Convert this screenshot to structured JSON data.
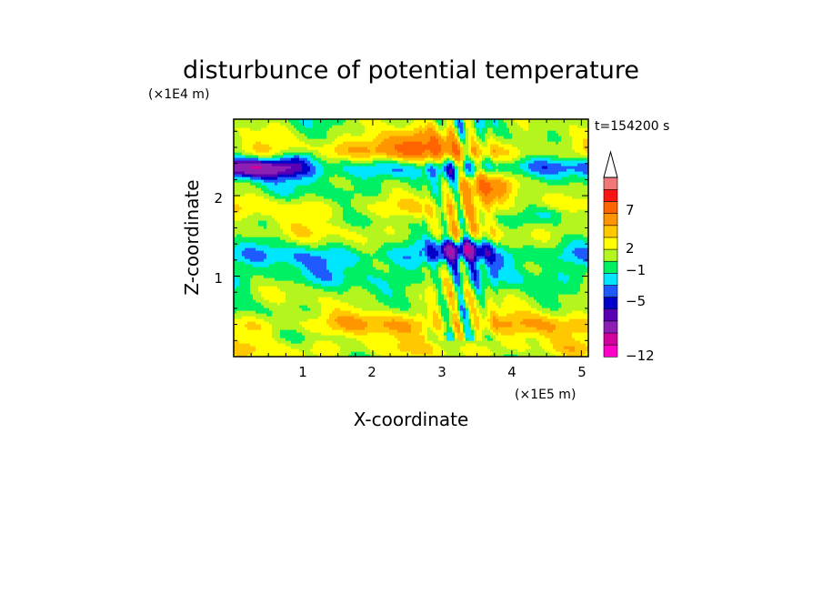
{
  "chart_data": {
    "type": "heatmap",
    "title": "disturbunce of potential temperature",
    "time_label": "t=154200 s",
    "xlabel": "X-coordinate",
    "ylabel": "Z-coordinate",
    "x_unit": "(×1E5 m)",
    "y_unit": "(×1E4 m)",
    "xlim": [
      0,
      5.1
    ],
    "ylim": [
      0,
      2.95
    ],
    "x_ticks": [
      "1",
      "2",
      "3",
      "4",
      "5"
    ],
    "y_ticks": [
      "1",
      "2"
    ],
    "colorbar": {
      "colors": [
        "#ff00c8",
        "#d4009e",
        "#8c1fb4",
        "#5a00b4",
        "#0000c8",
        "#1e5aff",
        "#00e6ff",
        "#00f064",
        "#b4f51e",
        "#ffff00",
        "#ffc800",
        "#ff9600",
        "#ff6400",
        "#ff1414",
        "#f07878",
        "#ffb4b4"
      ],
      "tick_labels": [
        "7",
        "2",
        "−1",
        "−5",
        "−12"
      ]
    }
  }
}
